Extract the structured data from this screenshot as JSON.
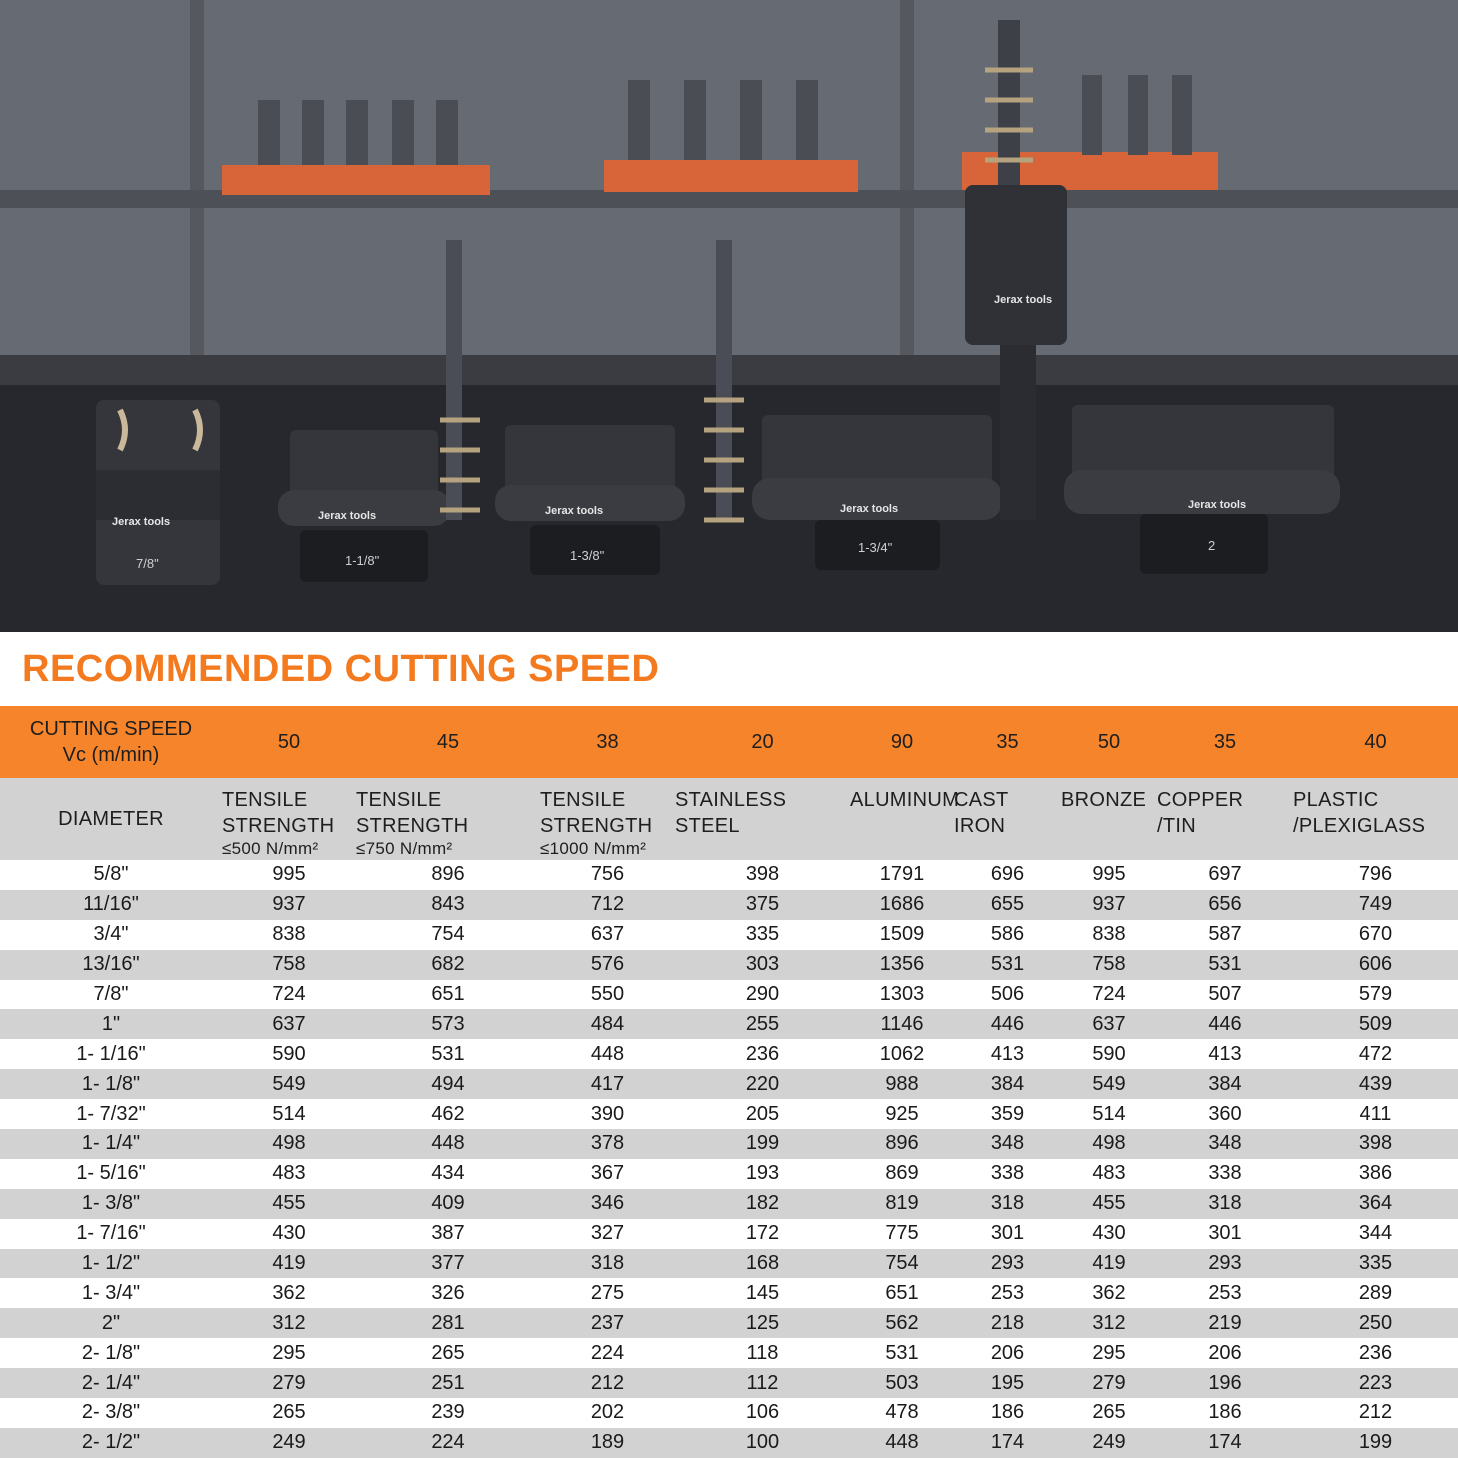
{
  "photo": {
    "brand_labels": [
      "Jerax tools",
      "Jerax tools",
      "Jerax tools",
      "Jerax tools",
      "Jerax tools",
      "Jerax tools"
    ],
    "size_labels": [
      "7/8\"",
      "1-1/8\"",
      "1-3/8\"",
      "1-3/4\"",
      "2"
    ]
  },
  "heading": "RECOMMENDED CUTTING SPEED",
  "speed_row": {
    "label_line1": "CUTTING SPEED",
    "label_line2": "Vc (m/min)",
    "values": [
      "50",
      "45",
      "38",
      "20",
      "90",
      "35",
      "50",
      "35",
      "40"
    ]
  },
  "header_row": {
    "diameter": "DIAMETER",
    "materials": [
      {
        "line1": "TENSILE",
        "line2": "STRENGTH",
        "line3": "≤500 N/mm²"
      },
      {
        "line1": "TENSILE",
        "line2": "STRENGTH",
        "line3": "≤750 N/mm²"
      },
      {
        "line1": "TENSILE",
        "line2": "STRENGTH",
        "line3": "≤1000 N/mm²"
      },
      {
        "line1": "STAINLESS",
        "line2": "STEEL",
        "line3": ""
      },
      {
        "line1": "ALUMINUM",
        "line2": "",
        "line3": ""
      },
      {
        "line1": "CAST",
        "line2": "IRON",
        "line3": ""
      },
      {
        "line1": "BRONZE",
        "line2": "",
        "line3": ""
      },
      {
        "line1": "COPPER",
        "line2": "/TIN",
        "line3": ""
      },
      {
        "line1": "PLASTIC",
        "line2": "/PLEXIGLASS",
        "line3": ""
      }
    ]
  },
  "rows": [
    [
      "5/8\"",
      "995",
      "896",
      "756",
      "398",
      "1791",
      "696",
      "995",
      "697",
      "796"
    ],
    [
      "11/16\"",
      "937",
      "843",
      "712",
      "375",
      "1686",
      "655",
      "937",
      "656",
      "749"
    ],
    [
      "3/4\"",
      "838",
      "754",
      "637",
      "335",
      "1509",
      "586",
      "838",
      "587",
      "670"
    ],
    [
      "13/16\"",
      "758",
      "682",
      "576",
      "303",
      "1356",
      "531",
      "758",
      "531",
      "606"
    ],
    [
      "7/8\"",
      "724",
      "651",
      "550",
      "290",
      "1303",
      "506",
      "724",
      "507",
      "579"
    ],
    [
      "1\"",
      "637",
      "573",
      "484",
      "255",
      "1146",
      "446",
      "637",
      "446",
      "509"
    ],
    [
      "1- 1/16\"",
      "590",
      "531",
      "448",
      "236",
      "1062",
      "413",
      "590",
      "413",
      "472"
    ],
    [
      "1- 1/8\"",
      "549",
      "494",
      "417",
      "220",
      "988",
      "384",
      "549",
      "384",
      "439"
    ],
    [
      "1- 7/32\"",
      "514",
      "462",
      "390",
      "205",
      "925",
      "359",
      "514",
      "360",
      "411"
    ],
    [
      "1- 1/4\"",
      "498",
      "448",
      "378",
      "199",
      "896",
      "348",
      "498",
      "348",
      "398"
    ],
    [
      "1- 5/16\"",
      "483",
      "434",
      "367",
      "193",
      "869",
      "338",
      "483",
      "338",
      "386"
    ],
    [
      "1- 3/8\"",
      "455",
      "409",
      "346",
      "182",
      "819",
      "318",
      "455",
      "318",
      "364"
    ],
    [
      "1- 7/16\"",
      "430",
      "387",
      "327",
      "172",
      "775",
      "301",
      "430",
      "301",
      "344"
    ],
    [
      "1- 1/2\"",
      "419",
      "377",
      "318",
      "168",
      "754",
      "293",
      "419",
      "293",
      "335"
    ],
    [
      "1- 3/4\"",
      "362",
      "326",
      "275",
      "145",
      "651",
      "253",
      "362",
      "253",
      "289"
    ],
    [
      "2\"",
      "312",
      "281",
      "237",
      "125",
      "562",
      "218",
      "312",
      "219",
      "250"
    ],
    [
      "2- 1/8\"",
      "295",
      "265",
      "224",
      "118",
      "531",
      "206",
      "295",
      "206",
      "236"
    ],
    [
      "2- 1/4\"",
      "279",
      "251",
      "212",
      "112",
      "503",
      "195",
      "279",
      "196",
      "223"
    ],
    [
      "2- 3/8\"",
      "265",
      "239",
      "202",
      "106",
      "478",
      "186",
      "265",
      "186",
      "212"
    ],
    [
      "2- 1/2\"",
      "249",
      "224",
      "189",
      "100",
      "448",
      "174",
      "249",
      "174",
      "199"
    ]
  ],
  "colors": {
    "accent": "#f47a20",
    "speed_row_bg": "#f5842b",
    "stripe": "#d2d2d2"
  }
}
